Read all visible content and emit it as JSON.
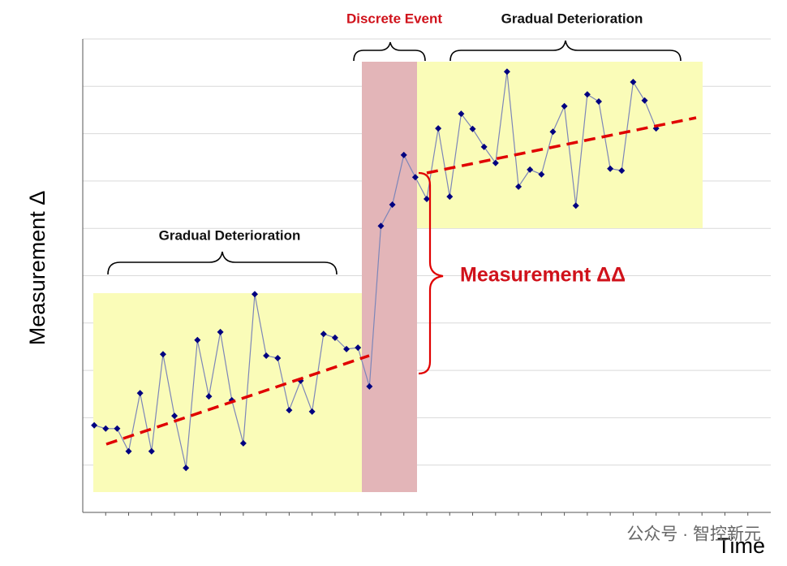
{
  "chart_data": {
    "type": "line",
    "annotations": {
      "discrete": "Discrete Event",
      "gradual_left": "Gradual Deterioration",
      "gradual_right": "Gradual Deterioration",
      "delta": "Measurement ΔΔ"
    },
    "ylabel": "Measurement Δ",
    "xlabel": "Time",
    "watermark": "公众号 · 智控新元",
    "x": [
      0.5,
      1,
      1.5,
      2,
      2.5,
      3,
      3.5,
      4,
      4.5,
      5,
      5.5,
      6,
      6.5,
      7,
      7.5,
      8,
      8.5,
      9,
      9.5,
      10,
      10.5,
      11,
      11.5,
      12,
      12.5,
      13,
      13.5,
      14,
      14.5,
      15,
      15.5,
      16,
      16.5,
      17,
      17.5,
      18,
      18.5,
      19,
      19.5,
      20,
      20.5,
      21,
      21.5,
      22,
      22.5,
      23,
      23.5,
      24,
      24.5,
      25
    ],
    "values": [
      1.84,
      1.77,
      1.77,
      1.29,
      2.52,
      1.29,
      3.34,
      2.04,
      0.94,
      3.64,
      2.45,
      3.81,
      2.37,
      1.46,
      4.61,
      3.31,
      3.26,
      2.16,
      2.78,
      2.13,
      3.77,
      3.69,
      3.45,
      3.48,
      2.66,
      6.05,
      6.5,
      7.55,
      7.08,
      6.62,
      8.11,
      6.67,
      8.42,
      8.1,
      7.72,
      7.38,
      9.31,
      6.88,
      7.24,
      7.14,
      8.04,
      8.58,
      6.48,
      8.83,
      8.68,
      7.26,
      7.22,
      9.09,
      8.7,
      8.11
    ],
    "color": "#000080",
    "xlim": [
      0,
      30
    ],
    "ylim": [
      0,
      10
    ],
    "xticks": [
      1,
      2,
      3,
      4,
      5,
      6,
      7,
      8,
      9,
      10,
      11,
      12,
      13,
      14,
      15,
      16,
      17,
      18,
      19,
      20,
      21,
      22,
      23,
      24,
      25,
      26,
      27,
      28,
      29
    ],
    "yticks": [
      1,
      2,
      3,
      4,
      5,
      6,
      7,
      8,
      9,
      10
    ],
    "grid": true
  }
}
